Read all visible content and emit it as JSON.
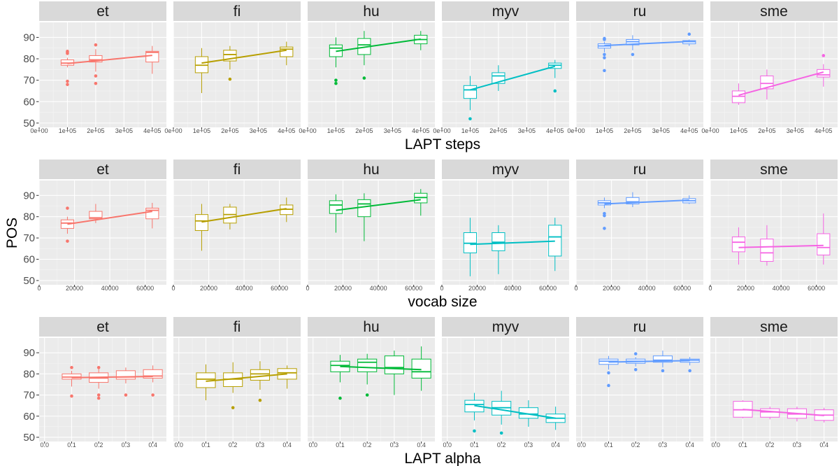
{
  "chart_data": [
    {
      "type": "boxplot",
      "row": 0,
      "xlabel": "LAPT steps",
      "ylabel": "POS",
      "xlim": [
        0,
        450000
      ],
      "ylim": [
        48,
        97
      ],
      "x_ticks": [
        0,
        100000,
        200000,
        300000,
        400000
      ],
      "x_tick_labels": [
        "0e+00",
        "1e+05",
        "2e+05",
        "3e+05",
        "4e+05"
      ],
      "y_ticks": [
        50,
        60,
        70,
        80,
        90
      ],
      "grid": true,
      "box_width": 45000,
      "panels": [
        {
          "lang": "et",
          "color": "#F8766D",
          "boxes": [
            {
              "x": 100000,
              "min": 76,
              "q1": 77,
              "median": 78,
              "q3": 79.5,
              "max": 80.5,
              "outliers": [
                83.5,
                83,
                82.5,
                69.5,
                68
              ]
            },
            {
              "x": 200000,
              "min": 74,
              "q1": 78.5,
              "median": 79.5,
              "q3": 81.5,
              "max": 84.5,
              "outliers": [
                86.5,
                72,
                68.5
              ]
            },
            {
              "x": 400000,
              "min": 73,
              "q1": 78.5,
              "median": 83,
              "q3": 83.5,
              "max": 86
            }
          ],
          "trend": [
            [
              100000,
              77.8
            ],
            [
              400000,
              81.6
            ]
          ]
        },
        {
          "lang": "fi",
          "color": "#B79F00",
          "boxes": [
            {
              "x": 100000,
              "min": 64,
              "q1": 73.5,
              "median": 77,
              "q3": 81,
              "max": 85
            },
            {
              "x": 200000,
              "min": 75,
              "q1": 79,
              "median": 82,
              "q3": 84,
              "max": 86,
              "outliers": [
                70.5
              ]
            },
            {
              "x": 400000,
              "min": 77,
              "q1": 81,
              "median": 84.5,
              "q3": 85.5,
              "max": 88
            }
          ],
          "trend": [
            [
              100000,
              78
            ],
            [
              400000,
              84
            ]
          ]
        },
        {
          "lang": "hu",
          "color": "#00BA38",
          "boxes": [
            {
              "x": 100000,
              "min": 76,
              "q1": 81,
              "median": 85,
              "q3": 86.5,
              "max": 90,
              "outliers": [
                70,
                68.5
              ]
            },
            {
              "x": 200000,
              "min": 77,
              "q1": 82,
              "median": 86.5,
              "q3": 89.5,
              "max": 93,
              "outliers": [
                71
              ]
            },
            {
              "x": 400000,
              "min": 84,
              "q1": 87,
              "median": 89,
              "q3": 91,
              "max": 93
            }
          ],
          "trend": [
            [
              100000,
              83.5
            ],
            [
              400000,
              89.2
            ]
          ]
        },
        {
          "lang": "myv",
          "color": "#00BFC4",
          "boxes": [
            {
              "x": 100000,
              "min": 56,
              "q1": 61.5,
              "median": 65.5,
              "q3": 67.5,
              "max": 72,
              "outliers": [
                52
              ]
            },
            {
              "x": 200000,
              "min": 65,
              "q1": 68.5,
              "median": 72,
              "q3": 73.5,
              "max": 77
            },
            {
              "x": 400000,
              "min": 71,
              "q1": 75.5,
              "median": 77,
              "q3": 78,
              "max": 79.5,
              "outliers": [
                65
              ]
            }
          ],
          "trend": [
            [
              100000,
              65.5
            ],
            [
              400000,
              76.5
            ]
          ]
        },
        {
          "lang": "ru",
          "color": "#619CFF",
          "boxes": [
            {
              "x": 100000,
              "min": 83,
              "q1": 85,
              "median": 86,
              "q3": 87,
              "max": 88,
              "outliers": [
                89.5,
                89,
                82,
                80.5,
                74.5
              ]
            },
            {
              "x": 200000,
              "min": 84,
              "q1": 86.5,
              "median": 88,
              "q3": 89,
              "max": 91,
              "outliers": [
                82
              ]
            },
            {
              "x": 400000,
              "min": 86,
              "q1": 87,
              "median": 88,
              "q3": 88.5,
              "max": 89,
              "outliers": [
                91.5
              ]
            }
          ],
          "trend": [
            [
              100000,
              86.2
            ],
            [
              400000,
              88.1
            ]
          ]
        },
        {
          "lang": "sme",
          "color": "#F564E3",
          "boxes": [
            {
              "x": 100000,
              "min": 58.5,
              "q1": 59.5,
              "median": 62.5,
              "q3": 65,
              "max": 68.5
            },
            {
              "x": 200000,
              "min": 61,
              "q1": 66,
              "median": 68.5,
              "q3": 72,
              "max": 75
            },
            {
              "x": 400000,
              "min": 67,
              "q1": 71.5,
              "median": 72.5,
              "q3": 75,
              "max": 77.5,
              "outliers": [
                81.5
              ]
            }
          ],
          "trend": [
            [
              100000,
              63
            ],
            [
              400000,
              73.8
            ]
          ]
        }
      ]
    },
    {
      "type": "boxplot",
      "row": 1,
      "xlabel": "vocab size",
      "ylabel": "POS",
      "xlim": [
        0,
        72000
      ],
      "ylim": [
        48,
        97
      ],
      "x_ticks": [
        0,
        20000,
        40000,
        60000
      ],
      "x_tick_labels": [
        "0",
        "20000",
        "40000",
        "60000"
      ],
      "y_ticks": [
        50,
        60,
        70,
        80,
        90
      ],
      "grid": true,
      "box_width": 7200,
      "panels": [
        {
          "lang": "et",
          "color": "#F8766D",
          "boxes": [
            {
              "x": 16000,
              "min": 72,
              "q1": 74.5,
              "median": 77,
              "q3": 78.5,
              "max": 80,
              "outliers": [
                84,
                68.5
              ]
            },
            {
              "x": 32000,
              "min": 77,
              "q1": 79,
              "median": 79.5,
              "q3": 82.5,
              "max": 86
            },
            {
              "x": 64000,
              "min": 74.5,
              "q1": 79,
              "median": 83,
              "q3": 84,
              "max": 86.5
            }
          ],
          "trend": [
            [
              16000,
              76.5
            ],
            [
              64000,
              82.5
            ]
          ]
        },
        {
          "lang": "fi",
          "color": "#B79F00",
          "boxes": [
            {
              "x": 16000,
              "min": 64,
              "q1": 73.5,
              "median": 78,
              "q3": 81,
              "max": 86
            },
            {
              "x": 32000,
              "min": 74,
              "q1": 77,
              "median": 81,
              "q3": 84.5,
              "max": 86
            },
            {
              "x": 64000,
              "min": 77.5,
              "q1": 81,
              "median": 83.5,
              "q3": 85.5,
              "max": 89
            }
          ],
          "trend": [
            [
              16000,
              77.5
            ],
            [
              64000,
              83.8
            ]
          ]
        },
        {
          "lang": "hu",
          "color": "#00BA38",
          "boxes": [
            {
              "x": 16000,
              "min": 72.5,
              "q1": 81.5,
              "median": 85.5,
              "q3": 87.5,
              "max": 90.5
            },
            {
              "x": 32000,
              "min": 68.5,
              "q1": 80,
              "median": 86,
              "q3": 88,
              "max": 91
            },
            {
              "x": 64000,
              "min": 80.5,
              "q1": 86.5,
              "median": 89,
              "q3": 91,
              "max": 93
            }
          ],
          "trend": [
            [
              16000,
              83
            ],
            [
              64000,
              88
            ]
          ]
        },
        {
          "lang": "myv",
          "color": "#00BFC4",
          "boxes": [
            {
              "x": 16000,
              "min": 52,
              "q1": 63,
              "median": 67.5,
              "q3": 72.5,
              "max": 79.5
            },
            {
              "x": 32000,
              "min": 53,
              "q1": 64,
              "median": 68,
              "q3": 72.5,
              "max": 76
            },
            {
              "x": 64000,
              "min": 54.5,
              "q1": 61.5,
              "median": 70.5,
              "q3": 76,
              "max": 79.5
            }
          ],
          "trend": [
            [
              16000,
              67
            ],
            [
              64000,
              68.5
            ]
          ]
        },
        {
          "lang": "ru",
          "color": "#619CFF",
          "boxes": [
            {
              "x": 16000,
              "min": 84,
              "q1": 85.5,
              "median": 86.5,
              "q3": 87.5,
              "max": 89,
              "outliers": [
                81.5,
                80.5,
                74.5
              ]
            },
            {
              "x": 32000,
              "min": 84.5,
              "q1": 86,
              "median": 87,
              "q3": 89,
              "max": 91.5
            },
            {
              "x": 64000,
              "min": 86,
              "q1": 86.5,
              "median": 87.5,
              "q3": 88.5,
              "max": 90
            }
          ],
          "trend": [
            [
              16000,
              86
            ],
            [
              64000,
              87.8
            ]
          ]
        },
        {
          "lang": "sme",
          "color": "#F564E3",
          "boxes": [
            {
              "x": 16000,
              "min": 57.5,
              "q1": 63.5,
              "median": 68,
              "q3": 70.5,
              "max": 75
            },
            {
              "x": 32000,
              "min": 57,
              "q1": 59,
              "median": 63,
              "q3": 69.5,
              "max": 76
            },
            {
              "x": 64000,
              "min": 57.5,
              "q1": 62,
              "median": 65.5,
              "q3": 72,
              "max": 81.5
            }
          ],
          "trend": [
            [
              16000,
              65.5
            ],
            [
              64000,
              66.5
            ]
          ]
        }
      ]
    },
    {
      "type": "boxplot",
      "row": 2,
      "xlabel": "LAPT alpha",
      "ylabel": "POS",
      "xlim": [
        -0.02,
        0.45
      ],
      "ylim": [
        48,
        97
      ],
      "x_ticks": [
        0.0,
        0.1,
        0.2,
        0.3,
        0.4
      ],
      "x_tick_labels": [
        "0.0",
        "0.1",
        "0.2",
        "0.3",
        "0.4"
      ],
      "y_ticks": [
        50,
        60,
        70,
        80,
        90
      ],
      "grid": true,
      "box_width": 0.07,
      "panels": [
        {
          "lang": "et",
          "color": "#F8766D",
          "boxes": [
            {
              "x": 0.1,
              "min": 74,
              "q1": 77.5,
              "median": 78.5,
              "q3": 80,
              "max": 81.5,
              "outliers": [
                83,
                69.5
              ]
            },
            {
              "x": 0.2,
              "min": 73,
              "q1": 76,
              "median": 78,
              "q3": 80.5,
              "max": 82.5,
              "outliers": [
                83,
                70,
                68.5
              ]
            },
            {
              "x": 0.3,
              "min": 75.5,
              "q1": 77.5,
              "median": 78.5,
              "q3": 81.5,
              "max": 83,
              "outliers": [
                70
              ]
            },
            {
              "x": 0.4,
              "min": 76,
              "q1": 78,
              "median": 79,
              "q3": 82,
              "max": 84,
              "outliers": [
                70
              ]
            }
          ],
          "trend": [
            [
              0.1,
              78.2
            ],
            [
              0.4,
              78.8
            ]
          ]
        },
        {
          "lang": "fi",
          "color": "#B79F00",
          "boxes": [
            {
              "x": 0.1,
              "min": 67.5,
              "q1": 73.5,
              "median": 77.5,
              "q3": 80.5,
              "max": 84.5
            },
            {
              "x": 0.2,
              "min": 71,
              "q1": 74,
              "median": 77.5,
              "q3": 80.5,
              "max": 85.5,
              "outliers": [
                64
              ]
            },
            {
              "x": 0.3,
              "min": 72.5,
              "q1": 77,
              "median": 80,
              "q3": 82,
              "max": 86,
              "outliers": [
                67.5
              ]
            },
            {
              "x": 0.4,
              "min": 73,
              "q1": 77.5,
              "median": 80.5,
              "q3": 82.5,
              "max": 84
            }
          ],
          "trend": [
            [
              0.1,
              76.5
            ],
            [
              0.4,
              80
            ]
          ]
        },
        {
          "lang": "hu",
          "color": "#00BA38",
          "boxes": [
            {
              "x": 0.1,
              "min": 76,
              "q1": 81,
              "median": 84,
              "q3": 86,
              "max": 89,
              "outliers": [
                68.5
              ]
            },
            {
              "x": 0.2,
              "min": 75,
              "q1": 81,
              "median": 85.5,
              "q3": 87,
              "max": 89.5,
              "outliers": [
                70
              ]
            },
            {
              "x": 0.3,
              "min": 70,
              "q1": 80,
              "median": 83,
              "q3": 88.5,
              "max": 91
            },
            {
              "x": 0.4,
              "min": 72,
              "q1": 78,
              "median": 81,
              "q3": 87,
              "max": 93
            }
          ],
          "trend": [
            [
              0.1,
              83.5
            ],
            [
              0.4,
              82
            ]
          ]
        },
        {
          "lang": "myv",
          "color": "#00BFC4",
          "boxes": [
            {
              "x": 0.1,
              "min": 58,
              "q1": 62,
              "median": 65.5,
              "q3": 67.5,
              "max": 71,
              "outliers": [
                53
              ]
            },
            {
              "x": 0.2,
              "min": 56,
              "q1": 60.5,
              "median": 64,
              "q3": 67,
              "max": 72,
              "outliers": [
                52
              ]
            },
            {
              "x": 0.3,
              "min": 55,
              "q1": 59,
              "median": 61,
              "q3": 64,
              "max": 67.5
            },
            {
              "x": 0.4,
              "min": 53.5,
              "q1": 57,
              "median": 59,
              "q3": 61,
              "max": 64.5
            }
          ],
          "trend": [
            [
              0.1,
              65
            ],
            [
              0.4,
              59
            ]
          ]
        },
        {
          "lang": "ru",
          "color": "#619CFF",
          "boxes": [
            {
              "x": 0.1,
              "min": 82,
              "q1": 84.5,
              "median": 86,
              "q3": 87,
              "max": 88.5,
              "outliers": [
                80.5,
                74.5
              ]
            },
            {
              "x": 0.2,
              "min": 83.5,
              "q1": 85,
              "median": 86,
              "q3": 87,
              "max": 88,
              "outliers": [
                89.5,
                82
              ]
            },
            {
              "x": 0.3,
              "min": 83,
              "q1": 85.5,
              "median": 86.5,
              "q3": 88.5,
              "max": 91,
              "outliers": [
                81.5
              ]
            },
            {
              "x": 0.4,
              "min": 84,
              "q1": 85.5,
              "median": 86.5,
              "q3": 87,
              "max": 88,
              "outliers": [
                81.5
              ]
            }
          ],
          "trend": [
            [
              0.1,
              85.6
            ],
            [
              0.4,
              86.3
            ]
          ]
        },
        {
          "lang": "sme",
          "color": "#F564E3",
          "boxes": [
            {
              "x": 0.1,
              "min": 59,
              "q1": 59.5,
              "median": 63,
              "q3": 67,
              "max": 67.5
            },
            {
              "x": 0.2,
              "min": 58.5,
              "q1": 59.5,
              "median": 62,
              "q3": 63.5,
              "max": 64.5
            },
            {
              "x": 0.3,
              "min": 57.5,
              "q1": 59,
              "median": 61,
              "q3": 63.5,
              "max": 64.5
            },
            {
              "x": 0.4,
              "min": 57,
              "q1": 58,
              "median": 60.5,
              "q3": 63,
              "max": 64
            }
          ],
          "trend": [
            [
              0.1,
              63.2
            ],
            [
              0.4,
              60.3
            ]
          ]
        }
      ]
    }
  ]
}
